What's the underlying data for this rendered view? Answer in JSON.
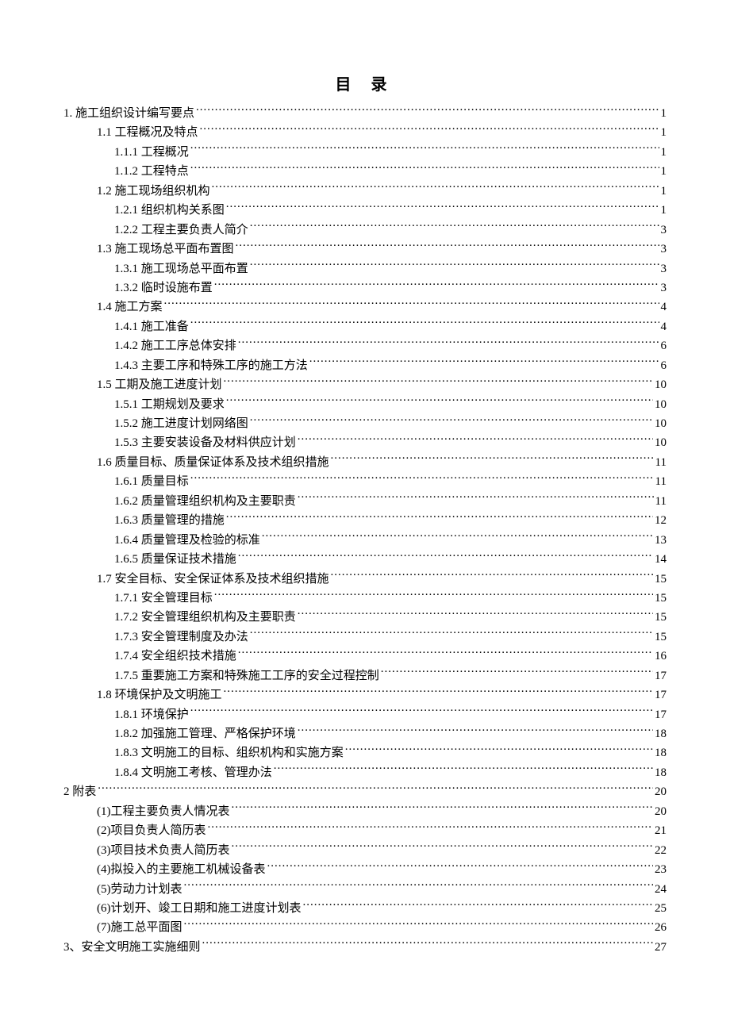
{
  "title": "目 录",
  "entries": [
    {
      "level": 0,
      "label": "1. 施工组织设计编写要点",
      "page": "1"
    },
    {
      "level": 1,
      "label": "1.1 工程概况及特点",
      "page": "1"
    },
    {
      "level": 2,
      "label": "1.1.1 工程概况",
      "page": "1"
    },
    {
      "level": 2,
      "label": "1.1.2 工程特点",
      "page": "1"
    },
    {
      "level": 1,
      "label": "1.2 施工现场组织机构",
      "page": "1"
    },
    {
      "level": 2,
      "label": "1.2.1 组织机构关系图",
      "page": "1"
    },
    {
      "level": 2,
      "label": "1.2.2 工程主要负责人简介",
      "page": "3"
    },
    {
      "level": 1,
      "label": "1.3 施工现场总平面布置图",
      "page": "3"
    },
    {
      "level": 2,
      "label": "1.3.1 施工现场总平面布置",
      "page": "3"
    },
    {
      "level": 2,
      "label": "1.3.2 临时设施布置",
      "page": "3"
    },
    {
      "level": 1,
      "label": "1.4 施工方案",
      "page": "4"
    },
    {
      "level": 2,
      "label": "1.4.1 施工准备",
      "page": "4"
    },
    {
      "level": 2,
      "label": "1.4.2 施工工序总体安排",
      "page": "6"
    },
    {
      "level": 2,
      "label": "1.4.3 主要工序和特殊工序的施工方法",
      "page": "6"
    },
    {
      "level": 1,
      "label": "1.5 工期及施工进度计划",
      "page": "10"
    },
    {
      "level": 2,
      "label": "1.5.1 工期规划及要求",
      "page": "10"
    },
    {
      "level": 2,
      "label": "1.5.2 施工进度计划网络图",
      "page": "10"
    },
    {
      "level": 2,
      "label": "1.5.3 主要安装设备及材料供应计划",
      "page": "10"
    },
    {
      "level": 1,
      "label": "1.6 质量目标、质量保证体系及技术组织措施",
      "page": "11"
    },
    {
      "level": 2,
      "label": "1.6.1 质量目标",
      "page": "11"
    },
    {
      "level": 2,
      "label": "1.6.2 质量管理组织机构及主要职责",
      "page": "11"
    },
    {
      "level": 2,
      "label": "1.6.3 质量管理的措施",
      "page": "12"
    },
    {
      "level": 2,
      "label": "1.6.4 质量管理及检验的标准",
      "page": "13"
    },
    {
      "level": 2,
      "label": "1.6.5 质量保证技术措施",
      "page": "14"
    },
    {
      "level": 1,
      "label": "1.7 安全目标、安全保证体系及技术组织措施",
      "page": "15"
    },
    {
      "level": 2,
      "label": "1.7.1 安全管理目标",
      "page": "15"
    },
    {
      "level": 2,
      "label": "1.7.2 安全管理组织机构及主要职责",
      "page": "15"
    },
    {
      "level": 2,
      "label": "1.7.3 安全管理制度及办法",
      "page": "15"
    },
    {
      "level": 2,
      "label": "1.7.4 安全组织技术措施",
      "page": "16"
    },
    {
      "level": 2,
      "label": "1.7.5 重要施工方案和特殊施工工序的安全过程控制",
      "page": "17"
    },
    {
      "level": 1,
      "label": "1.8 环境保护及文明施工",
      "page": "17"
    },
    {
      "level": 2,
      "label": "1.8.1 环境保护",
      "page": "17"
    },
    {
      "level": 2,
      "label": "1.8.2 加强施工管理、严格保护环境",
      "page": "18"
    },
    {
      "level": 2,
      "label": "1.8.3 文明施工的目标、组织机构和实施方案",
      "page": "18"
    },
    {
      "level": 2,
      "label": "1.8.4 文明施工考核、管理办法",
      "page": "18"
    },
    {
      "level": 0,
      "label": "2 附表",
      "page": "20"
    },
    {
      "level": 1,
      "label": "(1)工程主要负责人情况表",
      "page": "20"
    },
    {
      "level": 1,
      "label": "(2)项目负责人简历表",
      "page": "21"
    },
    {
      "level": 1,
      "label": "(3)项目技术负责人简历表",
      "page": "22"
    },
    {
      "level": 1,
      "label": "(4)拟投入的主要施工机械设备表",
      "page": "23"
    },
    {
      "level": 1,
      "label": "(5)劳动力计划表",
      "page": "24"
    },
    {
      "level": 1,
      "label": "(6)计划开、竣工日期和施工进度计划表",
      "page": "25"
    },
    {
      "level": 1,
      "label": "(7)施工总平面图",
      "page": "26"
    },
    {
      "level": 0,
      "label": "3、安全文明施工实施细则",
      "page": "27"
    }
  ]
}
